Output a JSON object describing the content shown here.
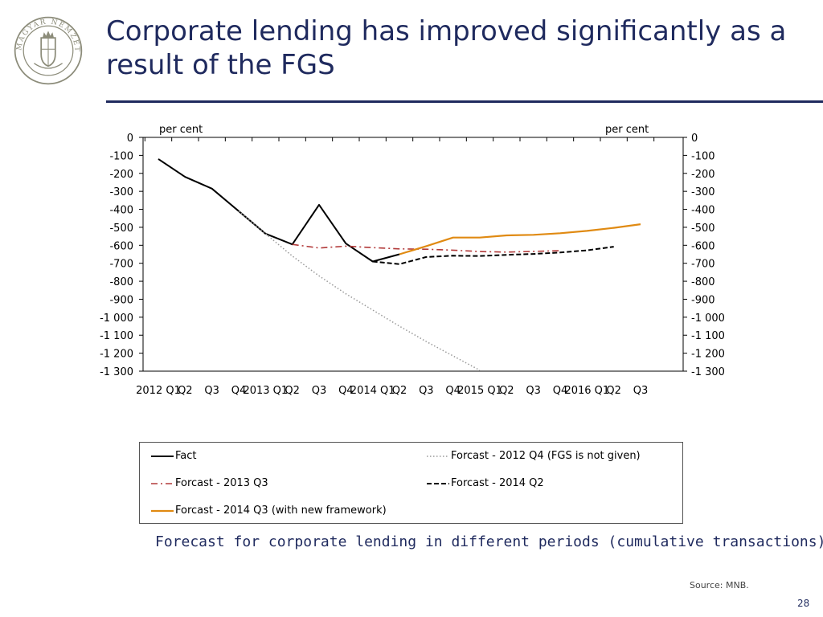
{
  "slide": {
    "title": "Corporate lending has improved significantly as a result of the FGS",
    "caption": "Forecast for corporate lending in different periods (cumulative transactions)",
    "source": "Source: MNB.",
    "page_number": "28",
    "logo_text": "MAGYAR NEMZETI BANK"
  },
  "colors": {
    "title": "#1f2a5e",
    "fact": "#000000",
    "forecast_2012q4": "#9a9a9a",
    "forecast_2013q3": "#b23a3a",
    "forecast_2014q2": "#000000",
    "forecast_2014q3": "#e08a12"
  },
  "chart_data": {
    "type": "line",
    "title": "",
    "ylabel_left": "per cent",
    "ylabel_right": "per cent",
    "ylim": [
      -1300,
      0
    ],
    "yticks": [
      0,
      -100,
      -200,
      -300,
      -400,
      -500,
      -600,
      -700,
      -800,
      -900,
      -1000,
      -1100,
      -1200,
      -1300
    ],
    "ytick_labels": [
      "0",
      "-100",
      "-200",
      "-300",
      "-400",
      "-500",
      "-600",
      "-700",
      "-800",
      "-900",
      "-1 000",
      "-1 100",
      "-1 200",
      "-1 300"
    ],
    "categories": [
      "2012 Q1",
      "Q2",
      "Q3",
      "Q4",
      "2013 Q1",
      "Q2",
      "Q3",
      "Q4",
      "2014 Q1",
      "Q2",
      "Q3",
      "Q4",
      "2015 Q1",
      "Q2",
      "Q3",
      "Q4",
      "2016 Q1",
      "Q2",
      "Q3"
    ],
    "grid": false,
    "legend_position": "bottom",
    "series": [
      {
        "name": "Fact",
        "style": "solid",
        "color": "#000000",
        "values": [
          -120,
          -220,
          -285,
          -410,
          -535,
          -595,
          -375,
          -590,
          -690,
          -650,
          null,
          null,
          null,
          null,
          null,
          null,
          null,
          null,
          null
        ]
      },
      {
        "name": "Forcast - 2012 Q4 (FGS is not given)",
        "style": "dotted",
        "color": "#9a9a9a",
        "values": [
          null,
          null,
          null,
          -410,
          -535,
          -660,
          -770,
          -870,
          -960,
          -1050,
          -1135,
          -1215,
          -1295,
          null,
          null,
          null,
          null,
          null,
          null
        ]
      },
      {
        "name": "Forcast - 2013 Q3",
        "style": "dashdot",
        "color": "#b23a3a",
        "values": [
          null,
          null,
          null,
          null,
          null,
          -595,
          -615,
          -605,
          -613,
          -620,
          -622,
          -627,
          -635,
          -638,
          -634,
          -630,
          null,
          null,
          null
        ]
      },
      {
        "name": "Forcast - 2014 Q2",
        "style": "dashed",
        "color": "#000000",
        "values": [
          null,
          null,
          null,
          null,
          null,
          null,
          null,
          null,
          -690,
          -705,
          -665,
          -658,
          -660,
          -653,
          -648,
          -640,
          -628,
          -608,
          null
        ]
      },
      {
        "name": "Forcast - 2014 Q3 (with new framework)",
        "style": "solid",
        "color": "#e08a12",
        "values": [
          null,
          null,
          null,
          null,
          null,
          null,
          null,
          null,
          null,
          -650,
          -605,
          -557,
          -557,
          -545,
          -542,
          -533,
          -520,
          -503,
          -483
        ]
      }
    ]
  }
}
